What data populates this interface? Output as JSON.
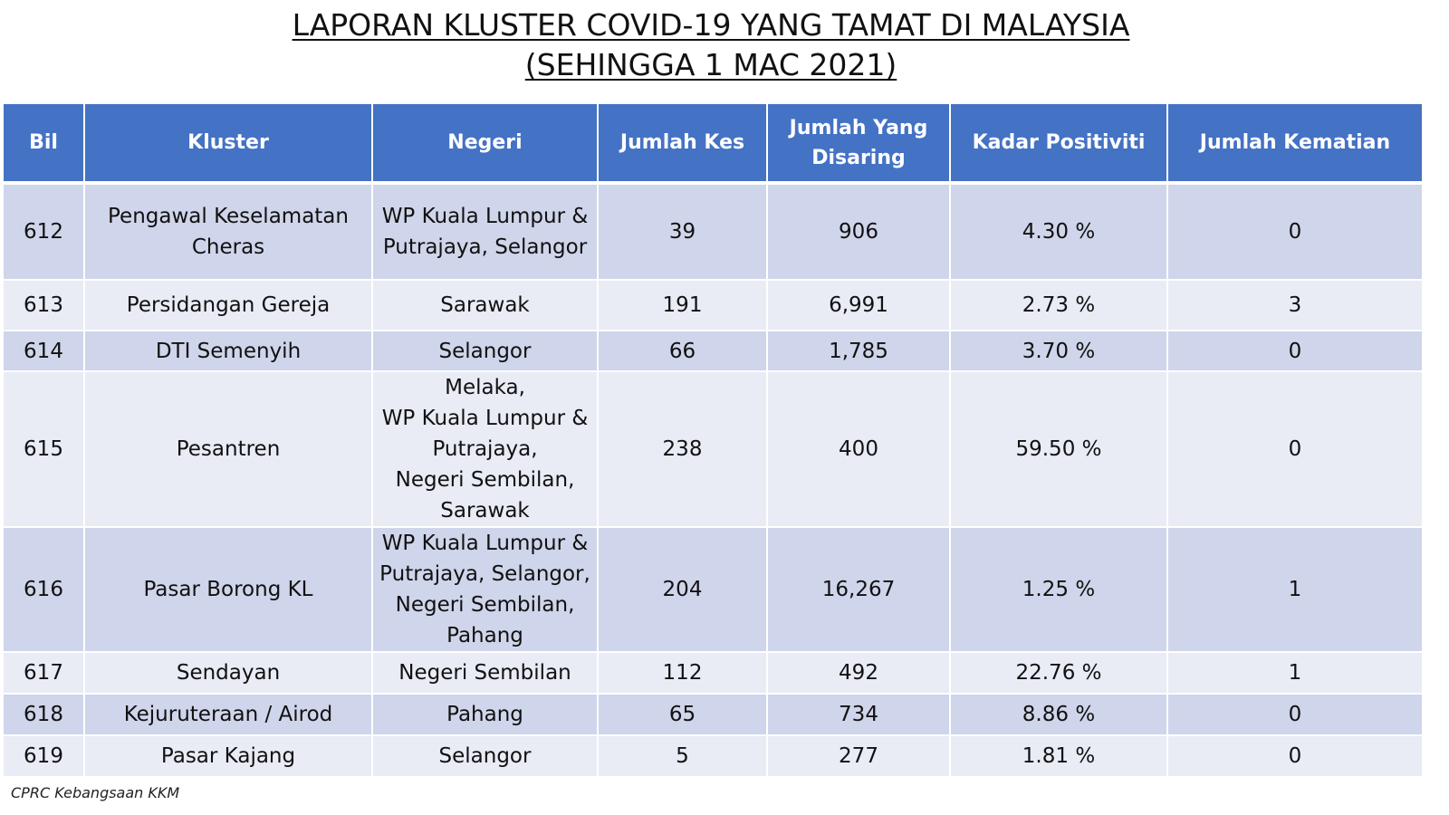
{
  "title": {
    "line1": "LAPORAN KLUSTER COVID-19 YANG TAMAT DI MALAYSIA",
    "line2": "(SEHINGGA 1 MAC 2021)"
  },
  "table": {
    "headers": [
      "Bil",
      "Kluster",
      "Negeri",
      "Jumlah Kes",
      "Jumlah Yang Disaring",
      "Kadar Positiviti",
      "Jumlah Kematian"
    ],
    "rows": [
      {
        "bil": "612",
        "kluster": "Pengawal Keselamatan Cheras",
        "negeri": "WP Kuala Lumpur & Putrajaya, Selangor",
        "kes": "39",
        "disaring": "906",
        "positiviti": "4.30 %",
        "kematian": "0"
      },
      {
        "bil": "613",
        "kluster": "Persidangan Gereja",
        "negeri": "Sarawak",
        "kes": "191",
        "disaring": "6,991",
        "positiviti": "2.73 %",
        "kematian": "3"
      },
      {
        "bil": "614",
        "kluster": "DTI Semenyih",
        "negeri": "Selangor",
        "kes": "66",
        "disaring": "1,785",
        "positiviti": "3.70 %",
        "kematian": "0"
      },
      {
        "bil": "615",
        "kluster": "Pesantren",
        "negeri": "Melaka,\nWP Kuala Lumpur & Putrajaya,\nNegeri Sembilan,\nSarawak",
        "kes": "238",
        "disaring": "400",
        "positiviti": "59.50 %",
        "kematian": "0"
      },
      {
        "bil": "616",
        "kluster": "Pasar Borong KL",
        "negeri": "WP Kuala Lumpur & Putrajaya,  Selangor, Negeri Sembilan, Pahang",
        "kes": "204",
        "disaring": "16,267",
        "positiviti": "1.25 %",
        "kematian": "1"
      },
      {
        "bil": "617",
        "kluster": "Sendayan",
        "negeri": "Negeri Sembilan",
        "kes": "112",
        "disaring": "492",
        "positiviti": "22.76 %",
        "kematian": "1"
      },
      {
        "bil": "618",
        "kluster": "Kejuruteraan / Airod",
        "negeri": "Pahang",
        "kes": "65",
        "disaring": "734",
        "positiviti": "8.86 %",
        "kematian": "0"
      },
      {
        "bil": "619",
        "kluster": "Pasar Kajang",
        "negeri": "Selangor",
        "kes": "5",
        "disaring": "277",
        "positiviti": "1.81 %",
        "kematian": "0"
      }
    ]
  },
  "footer": "CPRC Kebangsaan KKM",
  "colors": {
    "header_bg": "#4472c4",
    "row_dark": "#cfd5ea",
    "row_light": "#e9ebf5"
  }
}
